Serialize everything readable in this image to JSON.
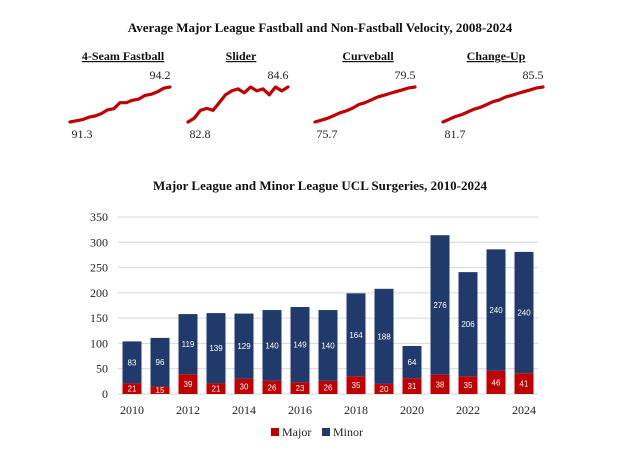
{
  "chart_data": [
    {
      "type": "line",
      "title": "Average Major League Fastball and Non-Fastball Velocity, 2008-2024",
      "x": [
        2008,
        2009,
        2010,
        2011,
        2012,
        2013,
        2014,
        2015,
        2016,
        2017,
        2018,
        2019,
        2020,
        2021,
        2022,
        2023,
        2024
      ],
      "series": [
        {
          "name": "4-Seam Fastball",
          "start_label": "91.3",
          "end_label": "94.2",
          "values": [
            91.3,
            91.4,
            91.5,
            91.7,
            91.8,
            92.0,
            92.3,
            92.4,
            92.9,
            92.9,
            93.1,
            93.2,
            93.5,
            93.6,
            93.8,
            94.1,
            94.2
          ]
        },
        {
          "name": "Slider",
          "start_label": "82.8",
          "end_label": "84.6",
          "values": [
            82.8,
            83.0,
            83.4,
            83.5,
            83.4,
            83.8,
            84.2,
            84.4,
            84.5,
            84.3,
            84.6,
            84.4,
            84.5,
            84.2,
            84.6,
            84.4,
            84.6
          ]
        },
        {
          "name": "Curveball",
          "start_label": "75.7",
          "end_label": "79.5",
          "values": [
            75.7,
            75.9,
            76.1,
            76.4,
            76.7,
            76.9,
            77.2,
            77.6,
            77.8,
            78.1,
            78.4,
            78.6,
            78.8,
            79.0,
            79.2,
            79.4,
            79.5
          ]
        },
        {
          "name": "Change-Up",
          "start_label": "81.7",
          "end_label": "85.5",
          "values": [
            81.7,
            82.0,
            82.3,
            82.5,
            82.8,
            83.1,
            83.3,
            83.6,
            83.9,
            84.1,
            84.4,
            84.6,
            84.8,
            85.0,
            85.2,
            85.4,
            85.5
          ]
        }
      ]
    },
    {
      "type": "bar",
      "stacked": true,
      "title": "Major League and Minor League UCL Surgeries, 2010-2024",
      "categories": [
        "2010",
        "2011",
        "2012",
        "2013",
        "2014",
        "2015",
        "2016",
        "2017",
        "2018",
        "2019",
        "2020",
        "2021",
        "2022",
        "2023",
        "2024"
      ],
      "x_tick_labels": [
        "2010",
        "2012",
        "2014",
        "2016",
        "2018",
        "2020",
        "2022",
        "2024"
      ],
      "y_ticks": [
        0,
        50,
        100,
        150,
        200,
        250,
        300,
        350
      ],
      "ylim": [
        0,
        350
      ],
      "grid": true,
      "legend_position": "bottom",
      "series": [
        {
          "name": "Major",
          "color": "#c00000",
          "values": [
            21,
            15,
            39,
            21,
            30,
            26,
            23,
            26,
            35,
            20,
            31,
            38,
            35,
            46,
            41
          ]
        },
        {
          "name": "Minor",
          "color": "#1f3a6b",
          "values": [
            83,
            96,
            119,
            139,
            129,
            140,
            149,
            140,
            164,
            188,
            64,
            276,
            206,
            240,
            240
          ]
        }
      ]
    }
  ]
}
